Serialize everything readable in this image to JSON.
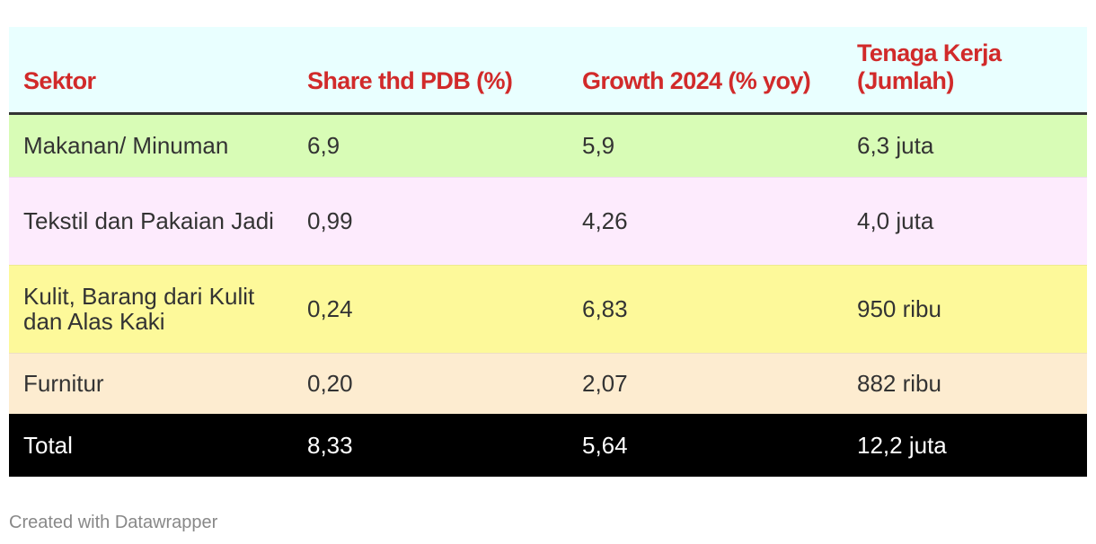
{
  "chart_data": {
    "type": "table",
    "header_style": {
      "background": "#e9ffff",
      "text_color": "#d12a2a"
    },
    "columns": [
      "Sektor",
      "Share thd PDB (%)",
      "Growth 2024 (% yoy)",
      "Tenaga Kerja (Jumlah)"
    ],
    "rows": [
      {
        "cells": [
          "Makanan/ Minuman",
          "6,9",
          "5,9",
          "6,3 juta"
        ],
        "background": "#d8fcb6"
      },
      {
        "cells": [
          "Tekstil dan Pakaian Jadi",
          "0,99",
          "4,26",
          "4,0 juta"
        ],
        "background": "#fdebfd"
      },
      {
        "cells": [
          "Kulit, Barang dari Kulit dan Alas Kaki",
          "0,24",
          "6,83",
          "950 ribu"
        ],
        "background": "#fdf99a"
      },
      {
        "cells": [
          "Furnitur",
          "0,20",
          "2,07",
          "882 ribu"
        ],
        "background": "#fdecd0"
      },
      {
        "cells": [
          "Total",
          "8,33",
          "5,64",
          "12,2 juta"
        ],
        "background": "#000000"
      }
    ]
  },
  "footer": {
    "credit": "Created with Datawrapper"
  }
}
